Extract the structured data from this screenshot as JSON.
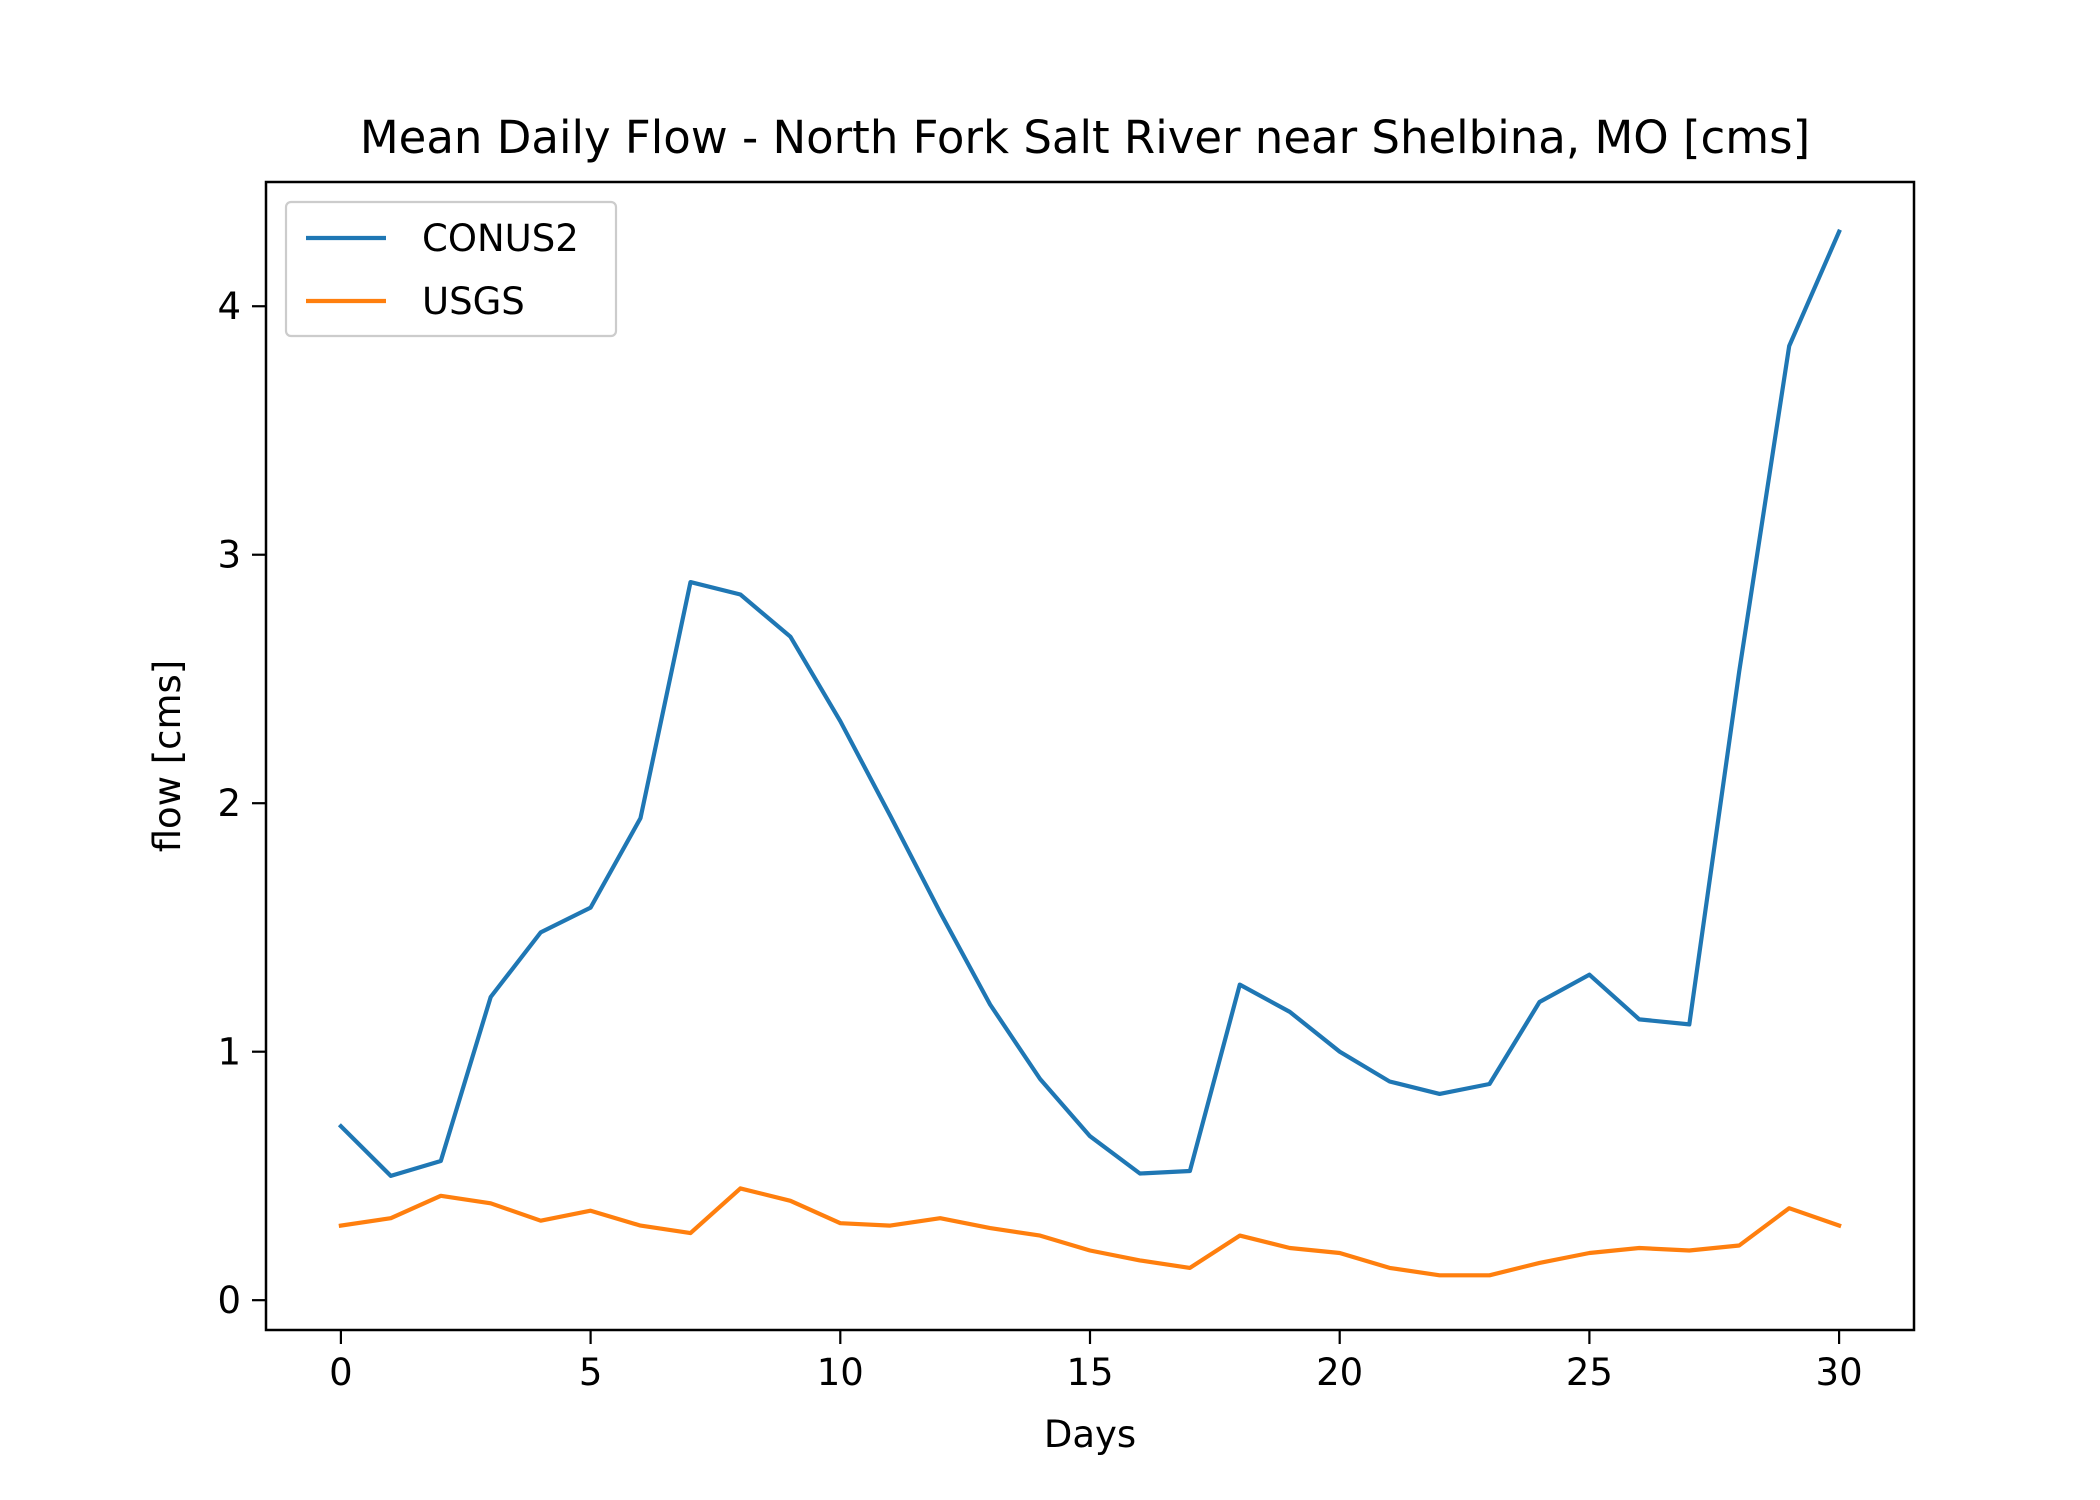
{
  "chart_data": {
    "type": "line",
    "title": "Mean Daily Flow - North Fork Salt River near Shelbina, MO [cms]",
    "xlabel": "Days",
    "ylabel": "flow [cms]",
    "xlim": [
      -1.5,
      31.5
    ],
    "ylim": [
      -0.12,
      4.5
    ],
    "xticks": [
      0,
      5,
      10,
      15,
      20,
      25,
      30
    ],
    "yticks": [
      0,
      1,
      2,
      3,
      4
    ],
    "grid": false,
    "legend": "upper-left",
    "x": [
      0,
      1,
      2,
      3,
      4,
      5,
      6,
      7,
      8,
      9,
      10,
      11,
      12,
      13,
      14,
      15,
      16,
      17,
      18,
      19,
      20,
      21,
      22,
      23,
      24,
      25,
      26,
      27,
      28,
      29,
      30
    ],
    "series": [
      {
        "name": "CONUS2",
        "color": "#1f77b4",
        "values": [
          0.7,
          0.5,
          0.56,
          1.22,
          1.48,
          1.58,
          1.94,
          2.89,
          2.84,
          2.67,
          2.33,
          1.95,
          1.56,
          1.19,
          0.89,
          0.66,
          0.51,
          0.52,
          1.27,
          1.16,
          1.0,
          0.88,
          0.83,
          0.87,
          1.2,
          1.31,
          1.13,
          1.11,
          2.53,
          3.84,
          4.3
        ]
      },
      {
        "name": "USGS",
        "color": "#ff7f0e",
        "values": [
          0.3,
          0.33,
          0.42,
          0.39,
          0.32,
          0.36,
          0.3,
          0.27,
          0.45,
          0.4,
          0.31,
          0.3,
          0.33,
          0.29,
          0.26,
          0.2,
          0.16,
          0.13,
          0.26,
          0.21,
          0.19,
          0.13,
          0.1,
          0.1,
          0.15,
          0.19,
          0.21,
          0.2,
          0.22,
          0.37,
          0.3
        ]
      }
    ]
  }
}
